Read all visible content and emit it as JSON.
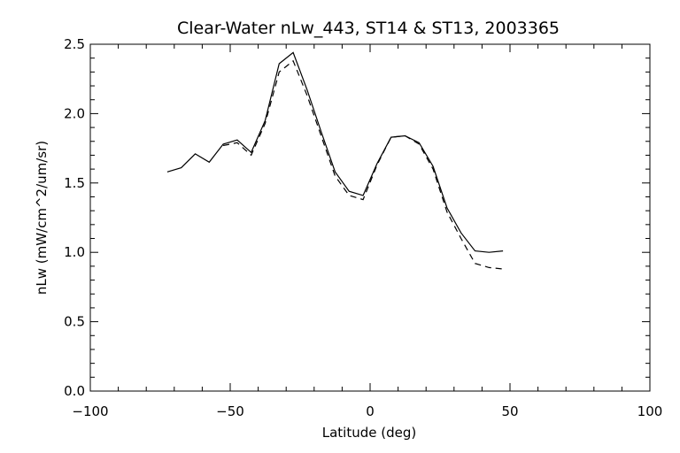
{
  "chart_data": {
    "type": "line",
    "title": "Clear-Water nLw_443, ST14 & ST13, 2003365",
    "xlabel": "Latitude (deg)",
    "ylabel": "nLw (mW/cm^2/um/sr)",
    "xlim": [
      -100,
      100
    ],
    "ylim": [
      0.0,
      2.5
    ],
    "x_ticks": [
      -100,
      -50,
      0,
      50,
      100
    ],
    "y_ticks": [
      0.0,
      0.5,
      1.0,
      1.5,
      2.0,
      2.5
    ],
    "x_tick_labels": [
      "−100",
      "−50",
      "0",
      "50",
      "100"
    ],
    "y_tick_labels": [
      "0.0",
      "0.5",
      "1.0",
      "1.5",
      "2.0",
      "2.5"
    ],
    "grid": false,
    "series": [
      {
        "style": "solid",
        "color": "#000000",
        "points": [
          [
            -72.5,
            1.58
          ],
          [
            -67.5,
            1.61
          ],
          [
            -62.5,
            1.71
          ],
          [
            -57.5,
            1.65
          ],
          [
            -52.5,
            1.78
          ],
          [
            -47.5,
            1.81
          ],
          [
            -42.5,
            1.72
          ],
          [
            -37.5,
            1.95
          ],
          [
            -32.5,
            2.36
          ],
          [
            -27.5,
            2.44
          ],
          [
            -22.5,
            2.17
          ],
          [
            -17.5,
            1.87
          ],
          [
            -12.5,
            1.58
          ],
          [
            -7.5,
            1.44
          ],
          [
            -2.5,
            1.41
          ],
          [
            2.5,
            1.64
          ],
          [
            7.5,
            1.83
          ],
          [
            12.5,
            1.84
          ],
          [
            17.5,
            1.79
          ],
          [
            22.5,
            1.62
          ],
          [
            27.5,
            1.32
          ],
          [
            32.5,
            1.14
          ],
          [
            37.5,
            1.01
          ],
          [
            42.5,
            1.0
          ],
          [
            47.5,
            1.01
          ]
        ]
      },
      {
        "style": "dashed",
        "color": "#000000",
        "points": [
          [
            -52.5,
            1.77
          ],
          [
            -47.5,
            1.79
          ],
          [
            -42.5,
            1.7
          ],
          [
            -37.5,
            1.93
          ],
          [
            -32.5,
            2.3
          ],
          [
            -27.5,
            2.38
          ],
          [
            -22.5,
            2.13
          ],
          [
            -17.5,
            1.84
          ],
          [
            -12.5,
            1.55
          ],
          [
            -7.5,
            1.41
          ],
          [
            -2.5,
            1.38
          ],
          [
            2.5,
            1.63
          ],
          [
            7.5,
            1.83
          ],
          [
            12.5,
            1.84
          ],
          [
            17.5,
            1.78
          ],
          [
            22.5,
            1.6
          ],
          [
            27.5,
            1.29
          ],
          [
            32.5,
            1.1
          ],
          [
            37.5,
            0.92
          ],
          [
            42.5,
            0.89
          ],
          [
            47.5,
            0.88
          ]
        ]
      }
    ]
  }
}
